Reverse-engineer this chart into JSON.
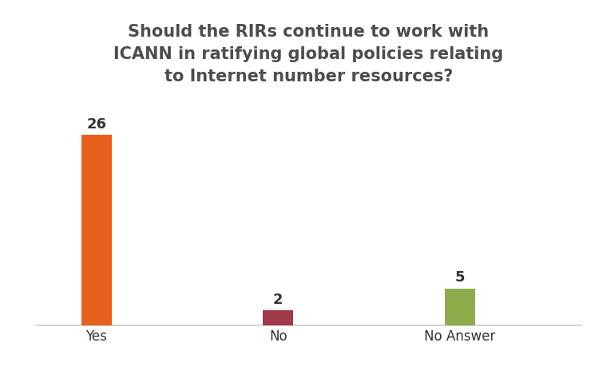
{
  "categories": [
    "Yes",
    "No",
    "No Answer"
  ],
  "values": [
    26,
    2,
    5
  ],
  "bar_colors": [
    "#e8601c",
    "#a0394a",
    "#8fac4b"
  ],
  "title": "Should the RIRs continue to work with\nICANN in ratifying global policies relating\nto Internet number resources?",
  "title_fontsize": 15,
  "title_color": "#4d4d4d",
  "label_fontsize": 13,
  "tick_fontsize": 12,
  "ylim": [
    0,
    30
  ],
  "bar_width": 0.25,
  "background_color": "#ffffff",
  "x_positions": [
    0.5,
    2.0,
    3.5
  ]
}
